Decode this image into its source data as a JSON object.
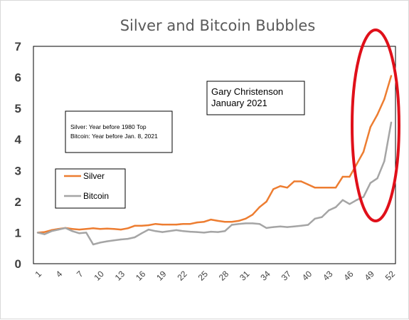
{
  "chart_data": {
    "type": "line",
    "title": "Silver and Bitcoin Bubbles",
    "xlabel": "",
    "ylabel": "",
    "ylim": [
      0,
      7
    ],
    "yticks": [
      "0",
      "1",
      "2",
      "3",
      "4",
      "5",
      "6",
      "7"
    ],
    "xlim": [
      1,
      52
    ],
    "xticks": [
      "1",
      "4",
      "7",
      "10",
      "13",
      "16",
      "19",
      "22",
      "25",
      "28",
      "31",
      "34",
      "37",
      "40",
      "43",
      "46",
      "49",
      "52"
    ],
    "grid": false,
    "legend": "left",
    "series": [
      {
        "name": "Silver",
        "color": "#ED7D31",
        "x": [
          1,
          2,
          3,
          4,
          5,
          6,
          7,
          8,
          9,
          10,
          11,
          12,
          13,
          14,
          15,
          16,
          17,
          18,
          19,
          20,
          21,
          22,
          23,
          24,
          25,
          26,
          27,
          28,
          29,
          30,
          31,
          32,
          33,
          34,
          35,
          36,
          37,
          38,
          39,
          40,
          41,
          42,
          43,
          44,
          45,
          46,
          47,
          48,
          49,
          50,
          51,
          52
        ],
        "values": [
          1.0,
          1.02,
          1.08,
          1.12,
          1.15,
          1.12,
          1.1,
          1.12,
          1.14,
          1.12,
          1.13,
          1.12,
          1.1,
          1.14,
          1.22,
          1.22,
          1.24,
          1.28,
          1.26,
          1.26,
          1.26,
          1.28,
          1.28,
          1.33,
          1.35,
          1.42,
          1.38,
          1.35,
          1.35,
          1.38,
          1.45,
          1.58,
          1.82,
          2.0,
          2.4,
          2.5,
          2.45,
          2.65,
          2.65,
          2.55,
          2.45,
          2.45,
          2.45,
          2.45,
          2.8,
          2.8,
          3.2,
          3.6,
          4.4,
          4.8,
          5.3,
          6.05
        ]
      },
      {
        "name": "Bitcoin",
        "color": "#A5A5A5",
        "x": [
          1,
          2,
          3,
          4,
          5,
          6,
          7,
          8,
          9,
          10,
          11,
          12,
          13,
          14,
          15,
          16,
          17,
          18,
          19,
          20,
          21,
          22,
          23,
          24,
          25,
          26,
          27,
          28,
          29,
          30,
          31,
          32,
          33,
          34,
          35,
          36,
          37,
          38,
          39,
          40,
          41,
          42,
          43,
          44,
          45,
          46,
          47,
          48,
          49,
          50,
          51,
          52
        ],
        "values": [
          1.0,
          0.95,
          1.05,
          1.1,
          1.15,
          1.05,
          0.98,
          1.0,
          0.62,
          0.68,
          0.72,
          0.75,
          0.78,
          0.8,
          0.85,
          0.98,
          1.1,
          1.05,
          1.02,
          1.05,
          1.08,
          1.05,
          1.03,
          1.02,
          1.0,
          1.03,
          1.02,
          1.05,
          1.25,
          1.28,
          1.3,
          1.3,
          1.28,
          1.15,
          1.18,
          1.2,
          1.18,
          1.2,
          1.22,
          1.25,
          1.45,
          1.5,
          1.72,
          1.82,
          2.05,
          1.92,
          2.05,
          2.15,
          2.6,
          2.75,
          3.3,
          4.55
        ]
      }
    ],
    "annotations": [
      {
        "lines": [
          "Gary Christenson",
          "January 2021"
        ]
      },
      {
        "lines": [
          "Silver: Year before 1980 Top",
          "Bitcoin: Year before Jan. 8, 2021"
        ]
      }
    ],
    "highlight": {
      "shape": "ellipse",
      "color": "#E0101A"
    }
  }
}
